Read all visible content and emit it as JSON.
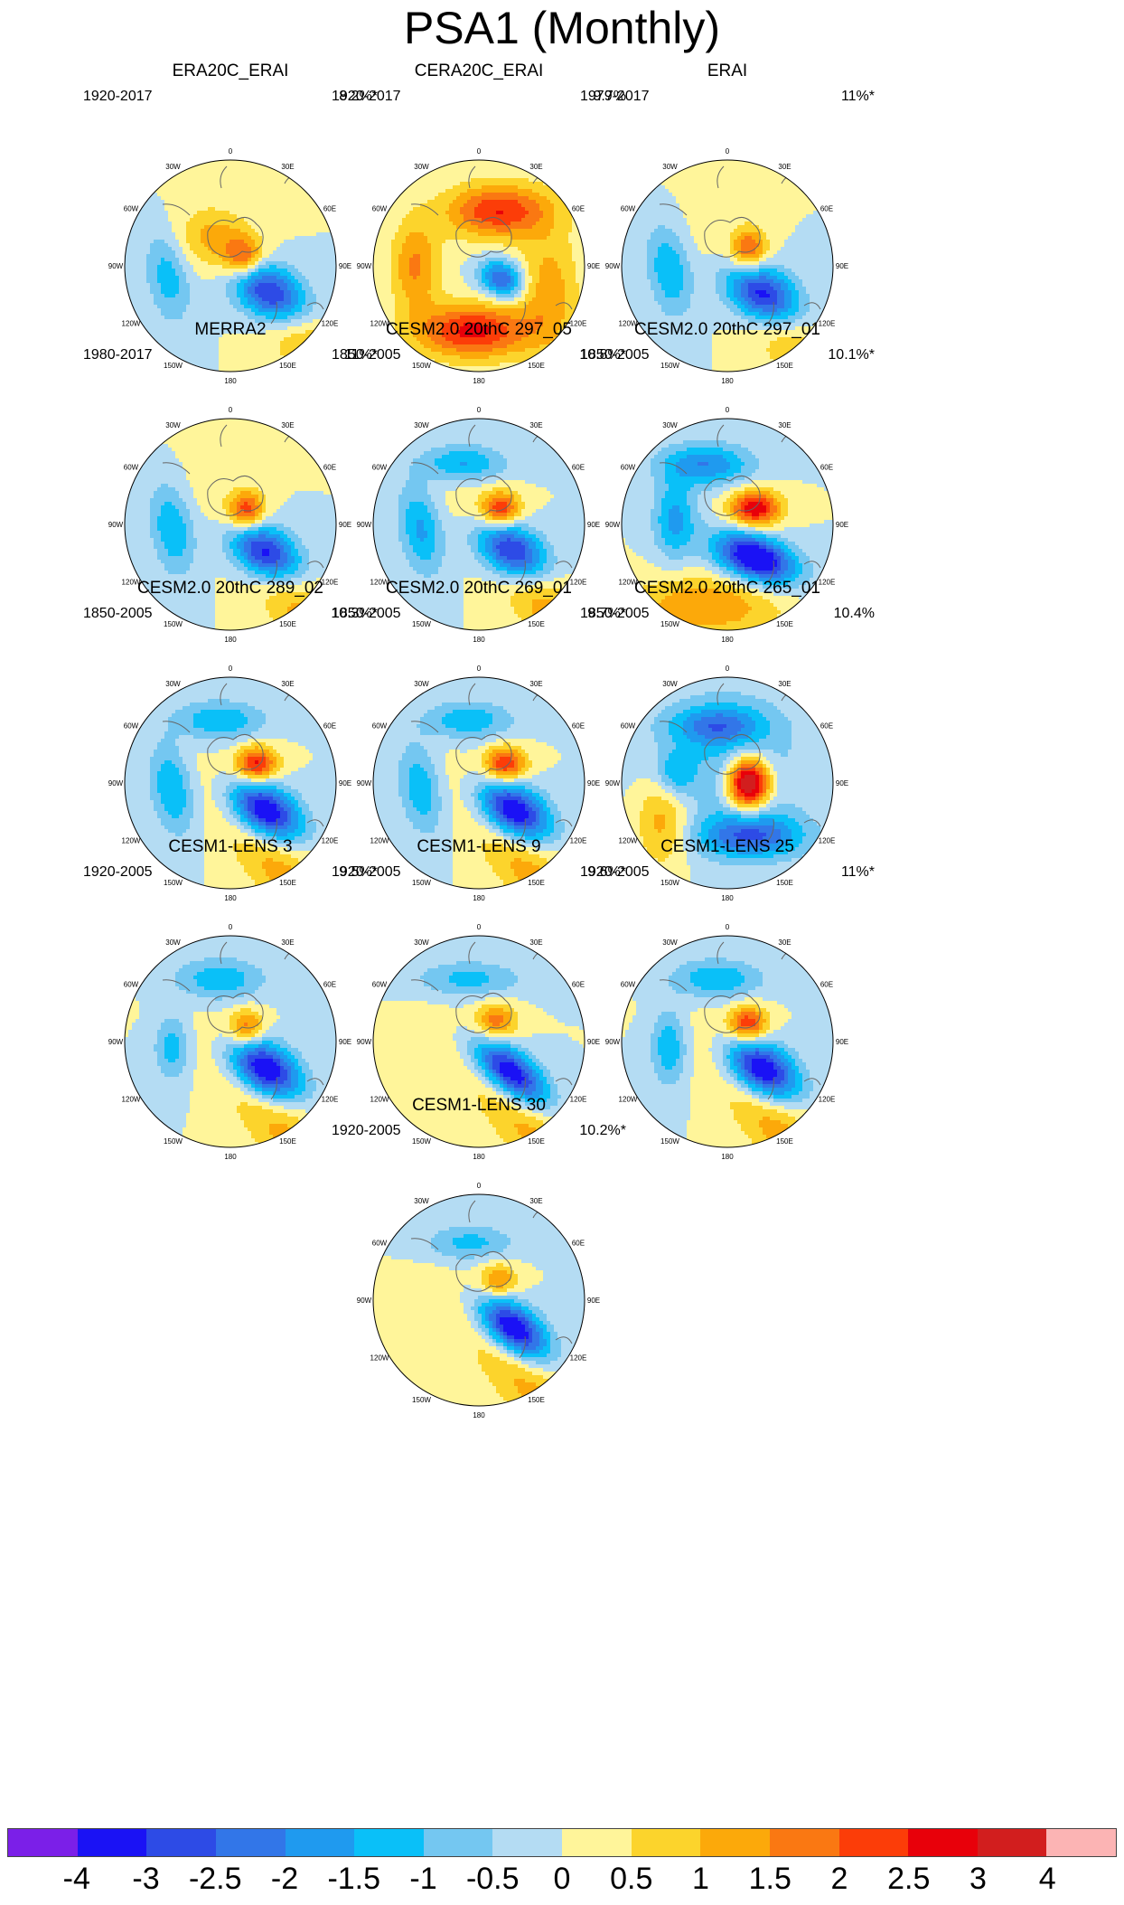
{
  "title": "PSA1 (Monthly)",
  "longitude_labels": [
    "0",
    "30E",
    "60E",
    "90E",
    "120E",
    "150E",
    "180",
    "150W",
    "120W",
    "90W",
    "60W",
    "30W"
  ],
  "colorbar": {
    "levels": [
      "-4",
      "-3",
      "-2.5",
      "-2",
      "-1.5",
      "-1",
      "-0.5",
      "0",
      "0.5",
      "1",
      "1.5",
      "2",
      "2.5",
      "3",
      "4"
    ],
    "colors": [
      "#7b1fe8",
      "#1a12f5",
      "#2d4be6",
      "#3276e8",
      "#1f9aef",
      "#0ac0f8",
      "#74c7f1",
      "#b4dcf3",
      "#fff59a",
      "#fcd42c",
      "#fca90a",
      "#fa7812",
      "#fc3d08",
      "#e8000a",
      "#d21e1e",
      "#fcb4b4"
    ]
  },
  "panels": [
    {
      "name": "ERA20C_ERAI",
      "period": "1920-2017",
      "variance": "8.2%*",
      "features": [
        {
          "lon": 125,
          "r": 0.45,
          "val": -4,
          "sx": 0.28,
          "sy": 0.18,
          "rot": 35
        },
        {
          "lon": 60,
          "r": 0.15,
          "val": 2,
          "sx": 0.13,
          "sy": 0.13,
          "rot": 0
        },
        {
          "lon": 135,
          "r": 0.9,
          "val": 1.3,
          "sx": 0.7,
          "sy": 0.2,
          "rot": 50
        },
        {
          "lon": -100,
          "r": 0.6,
          "val": -1.3,
          "sx": 0.14,
          "sy": 0.3,
          "rot": -10
        },
        {
          "lon": -30,
          "r": 0.3,
          "val": 1.0,
          "sx": 0.25,
          "sy": 0.2,
          "rot": 0
        }
      ]
    },
    {
      "name": "CERA20C_ERAI",
      "period": "1920-2017",
      "variance": "9.7%",
      "features": [
        {
          "lon": 120,
          "r": 0.25,
          "val": -2.6,
          "sx": 0.15,
          "sy": 0.12,
          "rot": 30
        },
        {
          "lon": 20,
          "r": 0.55,
          "val": 2.5,
          "sx": 0.35,
          "sy": 0.18,
          "rot": 0
        },
        {
          "lon": -175,
          "r": 0.62,
          "val": 2.7,
          "sx": 0.38,
          "sy": 0.18,
          "rot": 0
        },
        {
          "lon": -90,
          "r": 0.6,
          "val": 1.6,
          "sx": 0.16,
          "sy": 0.3,
          "rot": 0
        },
        {
          "lon": 110,
          "r": 0.7,
          "val": 1.3,
          "sx": 0.2,
          "sy": 0.4,
          "rot": 0
        }
      ]
    },
    {
      "name": "ERAI",
      "period": "1979-2017",
      "variance": "11%*",
      "features": [
        {
          "lon": 130,
          "r": 0.42,
          "val": -4,
          "sx": 0.28,
          "sy": 0.18,
          "rot": 35
        },
        {
          "lon": 55,
          "r": 0.25,
          "val": 2.2,
          "sx": 0.12,
          "sy": 0.15,
          "rot": 0
        },
        {
          "lon": 140,
          "r": 0.9,
          "val": 1.2,
          "sx": 0.7,
          "sy": 0.2,
          "rot": 50
        },
        {
          "lon": -95,
          "r": 0.55,
          "val": -1.5,
          "sx": 0.14,
          "sy": 0.3,
          "rot": -10
        }
      ]
    },
    {
      "name": "MERRA2",
      "period": "1980-2017",
      "variance": "11%*",
      "features": [
        {
          "lon": 130,
          "r": 0.42,
          "val": -4,
          "sx": 0.27,
          "sy": 0.17,
          "rot": 35
        },
        {
          "lon": 50,
          "r": 0.2,
          "val": 2.4,
          "sx": 0.12,
          "sy": 0.13,
          "rot": 0
        },
        {
          "lon": 140,
          "r": 0.9,
          "val": 1.3,
          "sx": 0.7,
          "sy": 0.2,
          "rot": 50
        },
        {
          "lon": -95,
          "r": 0.55,
          "val": -1.5,
          "sx": 0.14,
          "sy": 0.3,
          "rot": -10
        }
      ]
    },
    {
      "name": "CESM2.0 20thC 297_05",
      "period": "1850-2005",
      "variance": "10.8%*",
      "features": [
        {
          "lon": 130,
          "r": 0.4,
          "val": -4,
          "sx": 0.27,
          "sy": 0.17,
          "rot": 35
        },
        {
          "lon": 55,
          "r": 0.25,
          "val": 2.5,
          "sx": 0.13,
          "sy": 0.12,
          "rot": 0
        },
        {
          "lon": 140,
          "r": 0.9,
          "val": 1.4,
          "sx": 0.7,
          "sy": 0.2,
          "rot": 50
        },
        {
          "lon": -95,
          "r": 0.55,
          "val": -1.6,
          "sx": 0.14,
          "sy": 0.3,
          "rot": -10
        },
        {
          "lon": -15,
          "r": 0.6,
          "val": -1.6,
          "sx": 0.28,
          "sy": 0.12,
          "rot": 0
        }
      ]
    },
    {
      "name": "CESM2.0 20thC 297_01",
      "period": "1850-2005",
      "variance": "10.1%*",
      "features": [
        {
          "lon": 140,
          "r": 0.42,
          "val": -4,
          "sx": 0.28,
          "sy": 0.15,
          "rot": 20
        },
        {
          "lon": 60,
          "r": 0.3,
          "val": 3.0,
          "sx": 0.17,
          "sy": 0.12,
          "rot": 0
        },
        {
          "lon": -165,
          "r": 0.8,
          "val": 1.5,
          "sx": 0.5,
          "sy": 0.2,
          "rot": 0
        },
        {
          "lon": -85,
          "r": 0.5,
          "val": -1.7,
          "sx": 0.14,
          "sy": 0.25,
          "rot": 0
        },
        {
          "lon": -20,
          "r": 0.6,
          "val": -2.0,
          "sx": 0.3,
          "sy": 0.14,
          "rot": 0
        }
      ]
    },
    {
      "name": "CESM2.0 20thC 289_02",
      "period": "1850-2005",
      "variance": "10.3%*",
      "features": [
        {
          "lon": 130,
          "r": 0.42,
          "val": -4,
          "sx": 0.27,
          "sy": 0.17,
          "rot": 35
        },
        {
          "lon": 55,
          "r": 0.3,
          "val": 2.8,
          "sx": 0.14,
          "sy": 0.12,
          "rot": 0
        },
        {
          "lon": 150,
          "r": 0.9,
          "val": 1.3,
          "sx": 0.7,
          "sy": 0.2,
          "rot": 50
        },
        {
          "lon": -95,
          "r": 0.55,
          "val": -1.6,
          "sx": 0.14,
          "sy": 0.3,
          "rot": -10
        },
        {
          "lon": -10,
          "r": 0.6,
          "val": -1.5,
          "sx": 0.3,
          "sy": 0.13,
          "rot": 0
        }
      ]
    },
    {
      "name": "CESM2.0 20thC 269_01",
      "period": "1850-2005",
      "variance": "9.7%*",
      "features": [
        {
          "lon": 130,
          "r": 0.42,
          "val": -4,
          "sx": 0.27,
          "sy": 0.17,
          "rot": 35
        },
        {
          "lon": 55,
          "r": 0.3,
          "val": 2.7,
          "sx": 0.14,
          "sy": 0.12,
          "rot": 0
        },
        {
          "lon": 150,
          "r": 0.9,
          "val": 1.3,
          "sx": 0.7,
          "sy": 0.2,
          "rot": 50
        },
        {
          "lon": -95,
          "r": 0.55,
          "val": -1.5,
          "sx": 0.14,
          "sy": 0.3,
          "rot": -10
        },
        {
          "lon": -10,
          "r": 0.6,
          "val": -1.4,
          "sx": 0.3,
          "sy": 0.13,
          "rot": 0
        }
      ]
    },
    {
      "name": "CESM2.0 20thC 265_01",
      "period": "1850-2005",
      "variance": "10.4%",
      "features": [
        {
          "lon": 90,
          "r": 0.2,
          "val": 4.4,
          "sx": 0.14,
          "sy": 0.17,
          "rot": 0
        },
        {
          "lon": 155,
          "r": 0.55,
          "val": -2.4,
          "sx": 0.35,
          "sy": 0.15,
          "rot": 0
        },
        {
          "lon": -10,
          "r": 0.55,
          "val": -1.8,
          "sx": 0.3,
          "sy": 0.13,
          "rot": 0
        },
        {
          "lon": -120,
          "r": 0.7,
          "val": 1.4,
          "sx": 0.18,
          "sy": 0.3,
          "rot": 0
        },
        {
          "lon": -80,
          "r": 0.5,
          "val": -1.2,
          "sx": 0.12,
          "sy": 0.15,
          "rot": 0
        },
        {
          "lon": 0,
          "r": 0.2,
          "val": -1.0,
          "sx": 0.5,
          "sy": 0.5,
          "rot": 0
        }
      ]
    },
    {
      "name": "CESM1-LENS 3",
      "period": "1920-2005",
      "variance": "9.5%*",
      "features": [
        {
          "lon": 130,
          "r": 0.42,
          "val": -4,
          "sx": 0.27,
          "sy": 0.17,
          "rot": 35
        },
        {
          "lon": 50,
          "r": 0.2,
          "val": 2.0,
          "sx": 0.12,
          "sy": 0.12,
          "rot": 0
        },
        {
          "lon": 150,
          "r": 0.9,
          "val": 1.2,
          "sx": 0.7,
          "sy": 0.2,
          "rot": 50
        },
        {
          "lon": -95,
          "r": 0.55,
          "val": -1.3,
          "sx": 0.12,
          "sy": 0.22,
          "rot": 0
        },
        {
          "lon": -10,
          "r": 0.6,
          "val": -1.4,
          "sx": 0.3,
          "sy": 0.14,
          "rot": 0
        }
      ]
    },
    {
      "name": "CESM1-LENS 9",
      "period": "1920-2005",
      "variance": "9.6%*",
      "features": [
        {
          "lon": 135,
          "r": 0.42,
          "val": -4,
          "sx": 0.3,
          "sy": 0.14,
          "rot": 40
        },
        {
          "lon": 40,
          "r": 0.25,
          "val": 1.8,
          "sx": 0.14,
          "sy": 0.12,
          "rot": 0
        },
        {
          "lon": 150,
          "r": 0.9,
          "val": 1.2,
          "sx": 0.7,
          "sy": 0.2,
          "rot": 50
        },
        {
          "lon": -10,
          "r": 0.6,
          "val": -1.2,
          "sx": 0.35,
          "sy": 0.12,
          "rot": 0
        }
      ]
    },
    {
      "name": "CESM1-LENS 25",
      "period": "1920-2005",
      "variance": "11%*",
      "features": [
        {
          "lon": 130,
          "r": 0.42,
          "val": -4,
          "sx": 0.27,
          "sy": 0.17,
          "rot": 35
        },
        {
          "lon": 50,
          "r": 0.25,
          "val": 2.6,
          "sx": 0.13,
          "sy": 0.12,
          "rot": 0
        },
        {
          "lon": 150,
          "r": 0.9,
          "val": 1.3,
          "sx": 0.7,
          "sy": 0.2,
          "rot": 50
        },
        {
          "lon": -95,
          "r": 0.55,
          "val": -1.5,
          "sx": 0.12,
          "sy": 0.25,
          "rot": 0
        },
        {
          "lon": -10,
          "r": 0.6,
          "val": -1.5,
          "sx": 0.3,
          "sy": 0.13,
          "rot": 0
        }
      ]
    },
    {
      "name": "CESM1-LENS 30",
      "period": "1920-2005",
      "variance": "10.2%*",
      "features": [
        {
          "lon": 130,
          "r": 0.42,
          "val": -4,
          "sx": 0.28,
          "sy": 0.15,
          "rot": 40
        },
        {
          "lon": 45,
          "r": 0.25,
          "val": 1.7,
          "sx": 0.13,
          "sy": 0.12,
          "rot": 0
        },
        {
          "lon": 150,
          "r": 0.9,
          "val": 1.2,
          "sx": 0.7,
          "sy": 0.2,
          "rot": 50
        },
        {
          "lon": -10,
          "r": 0.55,
          "val": -1.2,
          "sx": 0.3,
          "sy": 0.12,
          "rot": 0
        }
      ]
    }
  ]
}
